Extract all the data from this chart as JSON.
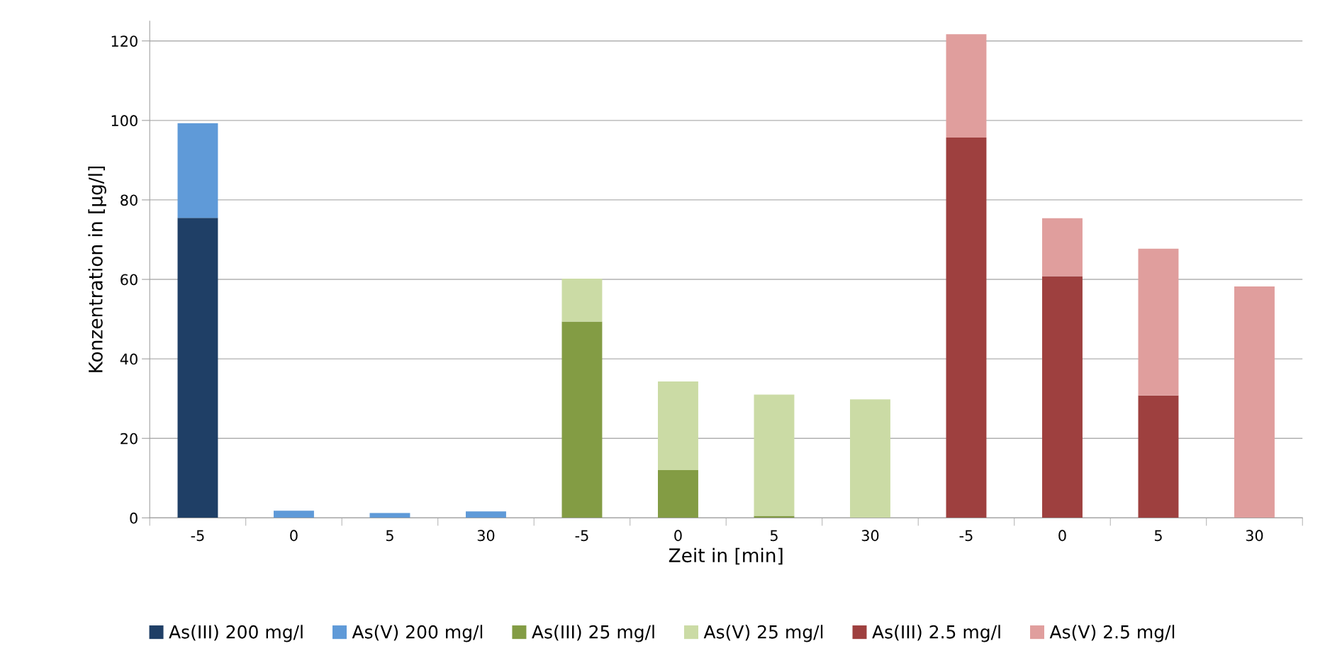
{
  "chart_data": {
    "type": "bar",
    "stacked": true,
    "xlabel": "Zeit in [min]",
    "ylabel": "Konzentration in [µg/l]",
    "categories": [
      "-5",
      "0",
      "5",
      "30",
      "-5",
      "0",
      "5",
      "30",
      "-5",
      "0",
      "5",
      "30"
    ],
    "ylim": [
      0,
      125
    ],
    "yticks": [
      0,
      20,
      40,
      60,
      80,
      100,
      120
    ],
    "grid": "y",
    "legend": "bottom",
    "series": [
      {
        "name": "As(III) 200 mg/l",
        "color": "#1f3f66",
        "values": [
          75.5,
          0,
          0,
          0,
          null,
          null,
          null,
          null,
          null,
          null,
          null,
          null
        ]
      },
      {
        "name": "As(V) 200 mg/l",
        "color": "#5f9ad8",
        "values": [
          23.8,
          1.8,
          1.2,
          1.6,
          null,
          null,
          null,
          null,
          null,
          null,
          null,
          null
        ]
      },
      {
        "name": "As(III) 25 mg/l",
        "color": "#839c44",
        "values": [
          null,
          null,
          null,
          null,
          49.4,
          12,
          0.5,
          0,
          null,
          null,
          null,
          null
        ]
      },
      {
        "name": "As(V) 25 mg/l",
        "color": "#cbdba5",
        "values": [
          null,
          null,
          null,
          null,
          10.8,
          22.3,
          30.5,
          29.8,
          null,
          null,
          null,
          null
        ]
      },
      {
        "name": "As(III) 2.5 mg/l",
        "color": "#9e403f",
        "values": [
          null,
          null,
          null,
          null,
          null,
          null,
          null,
          null,
          95.7,
          60.8,
          30.8,
          0
        ]
      },
      {
        "name": "As(V) 2.5 mg/l",
        "color": "#e09e9d",
        "values": [
          null,
          null,
          null,
          null,
          null,
          null,
          null,
          null,
          26,
          14.6,
          36.9,
          58.2
        ]
      }
    ]
  }
}
